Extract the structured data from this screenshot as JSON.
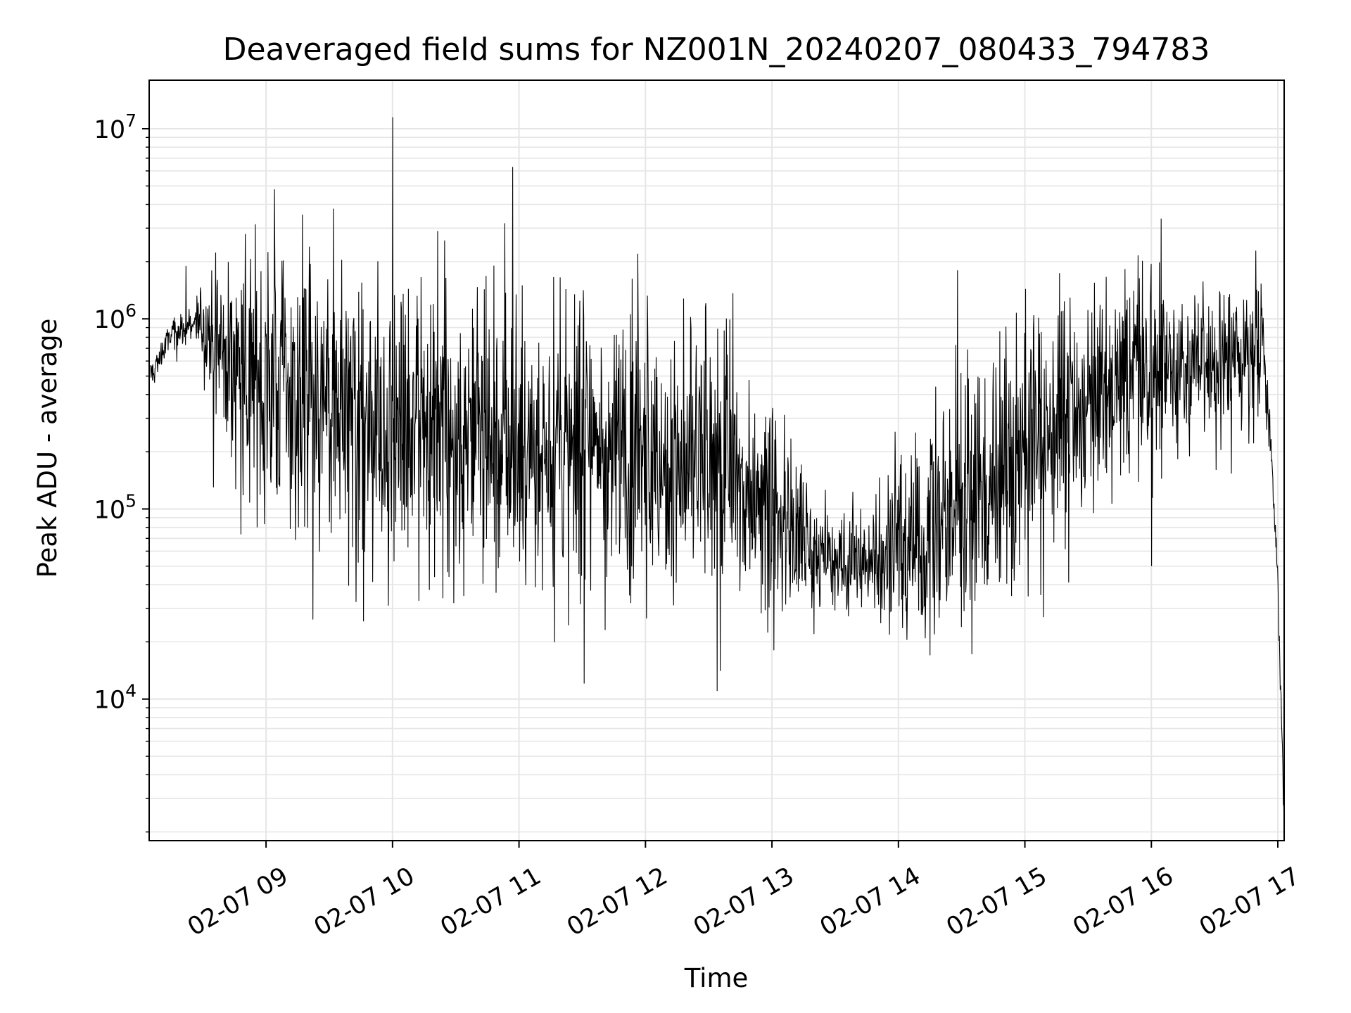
{
  "chart_data": {
    "type": "line",
    "title": "Deaveraged field sums for NZ001N_20240207_080433_794783",
    "xlabel": "Time",
    "ylabel": "Peak ADU - average",
    "x_scale": "time",
    "y_scale": "log",
    "xlim": [
      "2024-02-07T08:04:33",
      "2024-02-07T17:03:00"
    ],
    "ylim": [
      1800,
      18000000
    ],
    "grid": true,
    "line_color": "#000000",
    "grid_color": "#e6e6e6",
    "x_ticks": [
      {
        "label": "02-07 09",
        "time": "2024-02-07T09:00:00"
      },
      {
        "label": "02-07 10",
        "time": "2024-02-07T10:00:00"
      },
      {
        "label": "02-07 11",
        "time": "2024-02-07T11:00:00"
      },
      {
        "label": "02-07 12",
        "time": "2024-02-07T12:00:00"
      },
      {
        "label": "02-07 13",
        "time": "2024-02-07T13:00:00"
      },
      {
        "label": "02-07 14",
        "time": "2024-02-07T14:00:00"
      },
      {
        "label": "02-07 15",
        "time": "2024-02-07T15:00:00"
      },
      {
        "label": "02-07 16",
        "time": "2024-02-07T16:00:00"
      },
      {
        "label": "02-07 17",
        "time": "2024-02-07T17:00:00"
      }
    ],
    "y_ticks": [
      {
        "base": "10",
        "exp": "4",
        "value": 10000
      },
      {
        "base": "10",
        "exp": "5",
        "value": 100000
      },
      {
        "base": "10",
        "exp": "6",
        "value": 1000000
      },
      {
        "base": "10",
        "exp": "7",
        "value": 10000000
      }
    ],
    "series": [
      {
        "x": [
          "2024-02-07T08:05:00",
          "2024-02-07T08:15:00",
          "2024-02-07T08:25:00",
          "2024-02-07T08:35:00",
          "2024-02-07T08:45:00",
          "2024-02-07T08:55:00",
          "2024-02-07T09:10:00",
          "2024-02-07T09:30:00",
          "2024-02-07T09:50:00",
          "2024-02-07T10:15:00",
          "2024-02-07T10:45:00",
          "2024-02-07T11:15:00",
          "2024-02-07T11:45:00",
          "2024-02-07T12:15:00",
          "2024-02-07T12:45:00",
          "2024-02-07T13:05:00",
          "2024-02-07T13:20:00",
          "2024-02-07T13:35:00",
          "2024-02-07T13:50:00",
          "2024-02-07T14:05:00",
          "2024-02-07T14:20:00",
          "2024-02-07T14:35:00",
          "2024-02-07T14:50:00",
          "2024-02-07T15:05:00",
          "2024-02-07T15:20:00",
          "2024-02-07T15:40:00",
          "2024-02-07T16:00:00",
          "2024-02-07T16:20:00",
          "2024-02-07T16:40:00",
          "2024-02-07T16:53:00",
          "2024-02-07T16:56:00",
          "2024-02-07T16:58:00",
          "2024-02-07T17:00:00",
          "2024-02-07T17:01:00",
          "2024-02-07T17:02:00",
          "2024-02-07T17:03:00"
        ],
        "center": [
          500000,
          800000,
          950000,
          800000,
          600000,
          500000,
          400000,
          330000,
          280000,
          250000,
          230000,
          220000,
          210000,
          170000,
          130000,
          100000,
          60000,
          50000,
          55000,
          65000,
          85000,
          110000,
          150000,
          220000,
          300000,
          400000,
          520000,
          600000,
          650000,
          700000,
          300000,
          100000,
          40000,
          15000,
          6000,
          2000
        ],
        "spread": [
          0.1,
          0.08,
          0.08,
          0.35,
          0.55,
          0.6,
          0.65,
          0.65,
          0.65,
          0.6,
          0.6,
          0.6,
          0.6,
          0.6,
          0.55,
          0.5,
          0.22,
          0.2,
          0.3,
          0.45,
          0.5,
          0.5,
          0.55,
          0.55,
          0.5,
          0.45,
          0.4,
          0.35,
          0.35,
          0.35,
          0.15,
          0.1,
          0.08,
          0.08,
          0.08,
          0.05
        ]
      }
    ],
    "spikes": [
      {
        "time": "2024-02-07T08:22:00",
        "value": 1900000
      },
      {
        "time": "2024-02-07T09:04:00",
        "value": 4800000
      },
      {
        "time": "2024-02-07T09:32:00",
        "value": 3800000
      },
      {
        "time": "2024-02-07T10:00:00",
        "value": 11500000
      },
      {
        "time": "2024-02-07T10:57:00",
        "value": 6300000
      },
      {
        "time": "2024-02-07T14:28:00",
        "value": 1800000
      }
    ],
    "dips": [
      {
        "time": "2024-02-07T08:35:00",
        "value": 130000
      },
      {
        "time": "2024-02-07T09:58:00",
        "value": 31000
      },
      {
        "time": "2024-02-07T10:29:00",
        "value": 32000
      },
      {
        "time": "2024-02-07T13:20:00",
        "value": 22000
      },
      {
        "time": "2024-02-07T16:00:00",
        "value": 50000
      }
    ]
  }
}
